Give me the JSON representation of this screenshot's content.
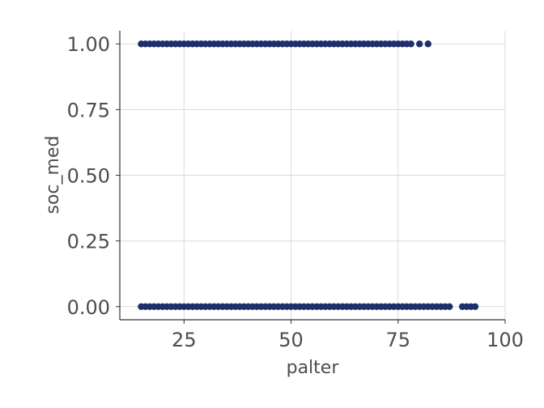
{
  "chart_data": {
    "type": "scatter",
    "xlabel": "palter",
    "ylabel": "soc_med",
    "xlim": [
      10,
      100
    ],
    "ylim": [
      -0.05,
      1.05
    ],
    "x_ticks": [
      25,
      50,
      75,
      100
    ],
    "x_tick_labels": [
      "25",
      "50",
      "75",
      "100"
    ],
    "y_ticks": [
      0,
      0.25,
      0.5,
      0.75,
      1
    ],
    "y_tick_labels": [
      "0.00",
      "0.25",
      "0.50",
      "0.75",
      "1.00"
    ],
    "grid": true,
    "point_color": "#1f2f6b",
    "series": [
      {
        "y": 1,
        "x": [
          15,
          16,
          17,
          18,
          19,
          20,
          21,
          22,
          23,
          24,
          25,
          26,
          27,
          28,
          29,
          30,
          31,
          32,
          33,
          34,
          35,
          36,
          37,
          38,
          39,
          40,
          41,
          42,
          43,
          44,
          45,
          46,
          47,
          48,
          49,
          50,
          51,
          52,
          53,
          54,
          55,
          56,
          57,
          58,
          59,
          60,
          61,
          62,
          63,
          64,
          65,
          66,
          67,
          68,
          69,
          70,
          71,
          72,
          73,
          74,
          75,
          76,
          77,
          78,
          80,
          82
        ]
      },
      {
        "y": 0,
        "x": [
          15,
          16,
          17,
          18,
          19,
          20,
          21,
          22,
          23,
          24,
          25,
          26,
          27,
          28,
          29,
          30,
          31,
          32,
          33,
          34,
          35,
          36,
          37,
          38,
          39,
          40,
          41,
          42,
          43,
          44,
          45,
          46,
          47,
          48,
          49,
          50,
          51,
          52,
          53,
          54,
          55,
          56,
          57,
          58,
          59,
          60,
          61,
          62,
          63,
          64,
          65,
          66,
          67,
          68,
          69,
          70,
          71,
          72,
          73,
          74,
          75,
          76,
          77,
          78,
          79,
          80,
          81,
          82,
          83,
          84,
          85,
          86,
          87,
          90,
          91,
          92,
          93
        ]
      }
    ]
  }
}
